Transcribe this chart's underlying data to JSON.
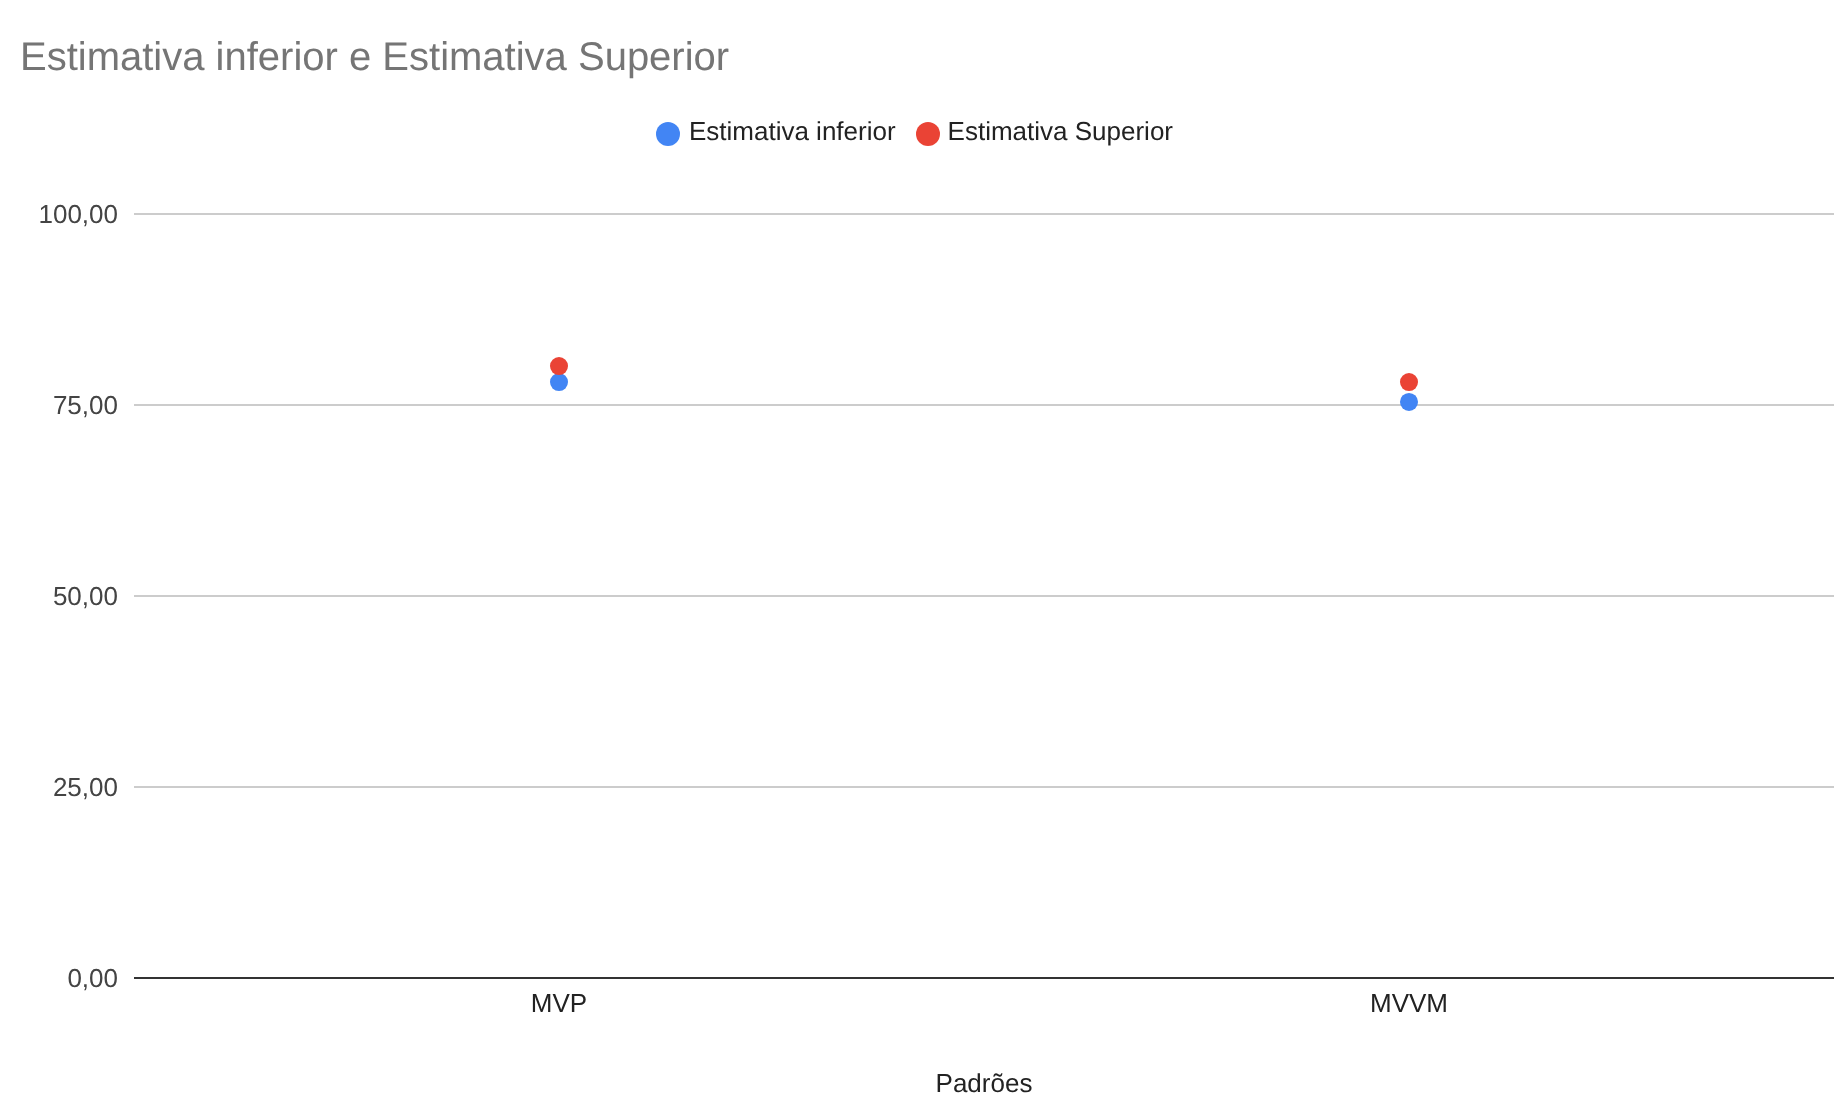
{
  "chart_data": {
    "type": "scatter",
    "title": "Estimativa inferior e Estimativa Superior",
    "xlabel": "Padrões",
    "categories": [
      "MVP",
      "MVVM"
    ],
    "series": [
      {
        "name": "Estimativa inferior",
        "color": "#4285f4",
        "values": [
          78.0,
          75.4
        ]
      },
      {
        "name": "Estimativa Superior",
        "color": "#ea4335",
        "values": [
          80.1,
          78.0
        ]
      }
    ],
    "ylim": [
      0,
      100
    ],
    "yticks": [
      {
        "value": 0,
        "label": "0,00"
      },
      {
        "value": 25,
        "label": "25,00"
      },
      {
        "value": 50,
        "label": "50,00"
      },
      {
        "value": 75,
        "label": "75,00"
      },
      {
        "value": 100,
        "label": "100,00"
      }
    ],
    "grid": "y",
    "legend": "top",
    "marker": "circle"
  }
}
